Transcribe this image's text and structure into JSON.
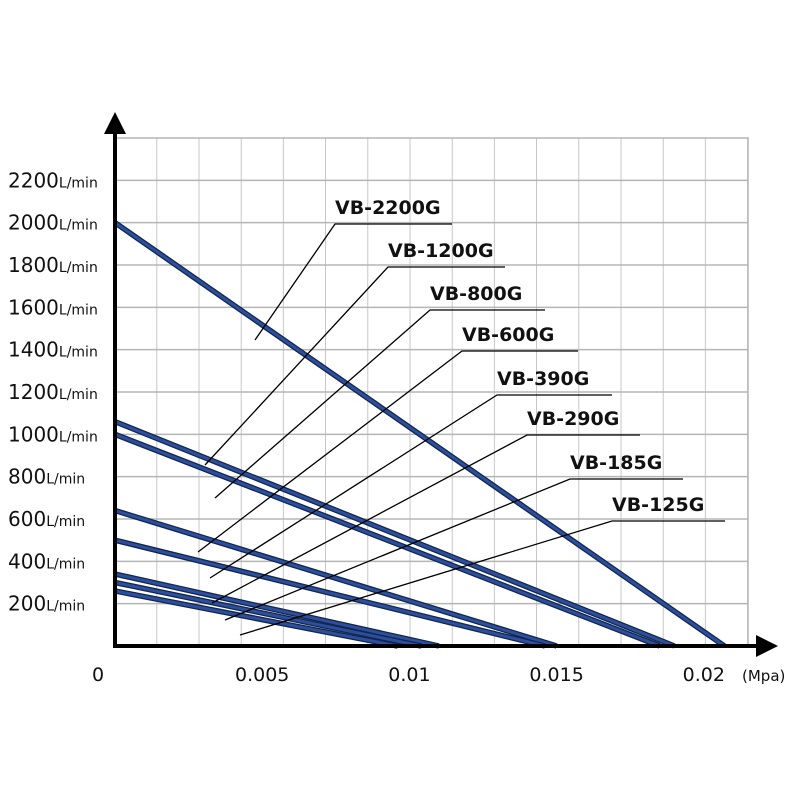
{
  "chart_data": {
    "type": "line",
    "x_unit": "(Mpa)",
    "y_unit": "L/min",
    "xlim": [
      0,
      0.0215
    ],
    "ylim": [
      0,
      2400
    ],
    "xticks": [
      0,
      0.005,
      0.01,
      0.015,
      0.02
    ],
    "yticks": [
      200,
      400,
      600,
      800,
      1000,
      1200,
      1400,
      1600,
      1800,
      2000,
      2200
    ],
    "grid": true,
    "color": "#2b4f9c",
    "series": [
      {
        "name": "VB-2200G",
        "x": [
          0,
          0.0207
        ],
        "values": [
          2000,
          0
        ]
      },
      {
        "name": "VB-1200G",
        "x": [
          0,
          0.019
        ],
        "values": [
          1060,
          0
        ]
      },
      {
        "name": "VB-800G",
        "x": [
          0,
          0.0185
        ],
        "values": [
          1000,
          0
        ]
      },
      {
        "name": "VB-600G",
        "x": [
          0,
          0.015
        ],
        "values": [
          640,
          0
        ]
      },
      {
        "name": "VB-390G",
        "x": [
          0,
          0.0146
        ],
        "values": [
          500,
          0
        ]
      },
      {
        "name": "VB-290G",
        "x": [
          0,
          0.011
        ],
        "values": [
          340,
          0
        ]
      },
      {
        "name": "VB-185G",
        "x": [
          0,
          0.0104
        ],
        "values": [
          300,
          0
        ]
      },
      {
        "name": "VB-125G",
        "x": [
          0,
          0.0096
        ],
        "values": [
          260,
          0
        ]
      }
    ]
  }
}
